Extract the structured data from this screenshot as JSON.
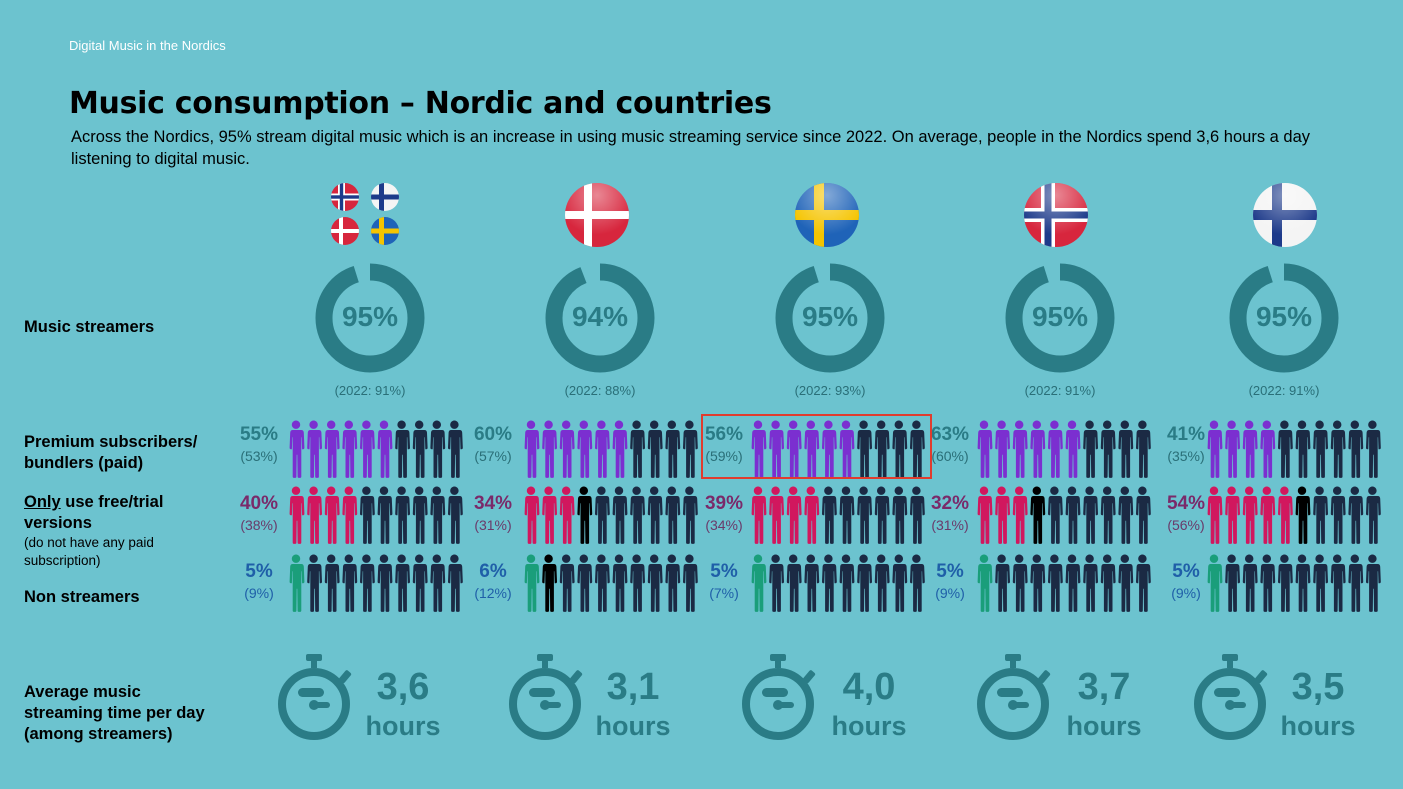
{
  "header": {
    "small": "Digital Music in the Nordics"
  },
  "title": "Music consumption – Nordic and countries",
  "subtitle": "Across the Nordics, 95% stream digital music which is an increase in using music streaming service since 2022. On average, people in the Nordics spend 3,6 hours a day listening to digital music.",
  "row_labels": {
    "streamers": "Music streamers",
    "premium": "Premium subscribers/ bundlers (paid)",
    "free_only": "Only",
    "free_rest": " use free/trial versions",
    "free_note": "(do not have any paid subscription)",
    "non": "Non streamers",
    "avg": "Average music streaming time per day",
    "avg_note": "(among streamers)"
  },
  "colors": {
    "background": "#6cc3cf",
    "ring": "#2a7c86",
    "premium_fill": "#7b2fd0",
    "free_fill": "#d1175e",
    "non_fill": "#1a9e7a",
    "figure_dark": "#1b2a44",
    "figure_black": "#000000",
    "highlight": "#e03c2e"
  },
  "icons": [
    "flag-icon",
    "stopwatch-icon",
    "person-icon"
  ],
  "chart_data": {
    "type": "table",
    "columns": [
      "Nordics",
      "Denmark",
      "Sweden",
      "Norway",
      "Finland"
    ],
    "streamers": {
      "values": [
        "95%",
        "94%",
        "95%",
        "95%",
        "95%"
      ],
      "prev": [
        "(2022: 91%)",
        "(2022: 88%)",
        "(2022: 93%)",
        "(2022: 91%)",
        "(2022: 91%)"
      ]
    },
    "premium": {
      "values": [
        "55%",
        "60%",
        "56%",
        "63%",
        "41%"
      ],
      "prev": [
        "(53%)",
        "(57%)",
        "(59%)",
        "(60%)",
        "(35%)"
      ]
    },
    "free": {
      "values": [
        "40%",
        "34%",
        "39%",
        "32%",
        "54%"
      ],
      "prev": [
        "(38%)",
        "(31%)",
        "(34%)",
        "(31%)",
        "(56%)"
      ]
    },
    "non": {
      "values": [
        "5%",
        "6%",
        "5%",
        "5%",
        "5%"
      ],
      "prev": [
        "(9%)",
        "(12%)",
        "(7%)",
        "(9%)",
        "(9%)"
      ]
    },
    "hours": {
      "values": [
        "3,6",
        "3,1",
        "4,0",
        "3,7",
        "3,5"
      ],
      "unit": "hours"
    },
    "streamer_fractions": [
      0.95,
      0.94,
      0.95,
      0.95,
      0.95
    ],
    "premium_figures_colored": [
      6,
      6,
      6,
      6,
      4
    ],
    "free_figures_colored": [
      4,
      3,
      4,
      3,
      5
    ],
    "non_figures_colored": [
      1,
      1,
      1,
      1,
      1
    ],
    "highlighted_column": "Sweden"
  }
}
